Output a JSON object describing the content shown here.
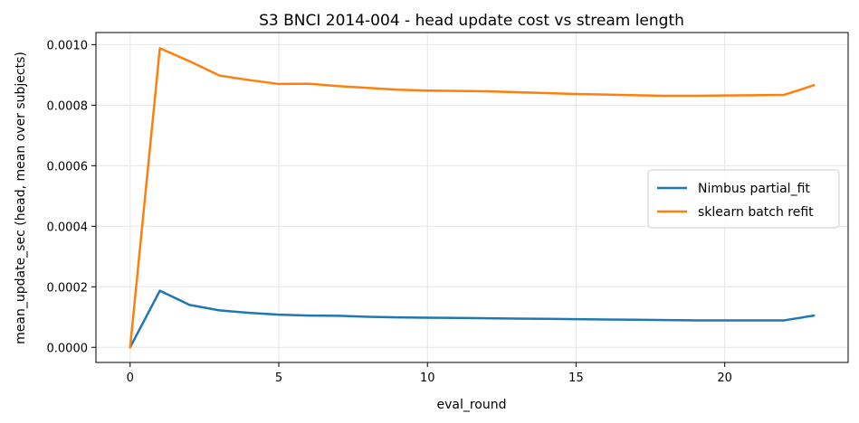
{
  "chart_data": {
    "type": "line",
    "title": "S3 BNCI 2014-004 - head update cost vs stream length",
    "xlabel": "eval_round",
    "ylabel": "mean_update_sec (head, mean over subjects)",
    "xlim": [
      -1.15,
      24.15
    ],
    "ylim": [
      -5e-05,
      0.00104
    ],
    "xticks": [
      0,
      5,
      10,
      15,
      20
    ],
    "yticks": [
      0.0,
      0.0002,
      0.0004,
      0.0006,
      0.0008,
      0.001
    ],
    "ytick_labels": [
      "0.0000",
      "0.0002",
      "0.0004",
      "0.0006",
      "0.0008",
      "0.0010"
    ],
    "grid": true,
    "legend_position": "center-right",
    "x": [
      0,
      1,
      2,
      3,
      4,
      5,
      6,
      7,
      8,
      9,
      10,
      11,
      12,
      13,
      14,
      15,
      16,
      17,
      18,
      19,
      20,
      21,
      22,
      23
    ],
    "series": [
      {
        "name": "Nimbus partial_fit",
        "color": "#1f77b4",
        "values": [
          0.0,
          0.000187,
          0.00014,
          0.000122,
          0.000114,
          0.000108,
          0.000105,
          0.000104,
          0.000101,
          9.9e-05,
          9.8e-05,
          9.7e-05,
          9.6e-05,
          9.5e-05,
          9.4e-05,
          9.3e-05,
          9.2e-05,
          9.1e-05,
          9e-05,
          8.9e-05,
          8.9e-05,
          8.9e-05,
          8.9e-05,
          0.000105
        ]
      },
      {
        "name": "sklearn batch refit",
        "color": "#ff7f0e",
        "values": [
          0.0,
          0.000988,
          0.000945,
          0.000898,
          0.000883,
          0.00087,
          0.000871,
          0.000863,
          0.000857,
          0.000851,
          0.000848,
          0.000847,
          0.000846,
          0.000843,
          0.00084,
          0.000837,
          0.000835,
          0.000833,
          0.000831,
          0.000831,
          0.000832,
          0.000833,
          0.000834,
          0.000866
        ]
      }
    ]
  }
}
